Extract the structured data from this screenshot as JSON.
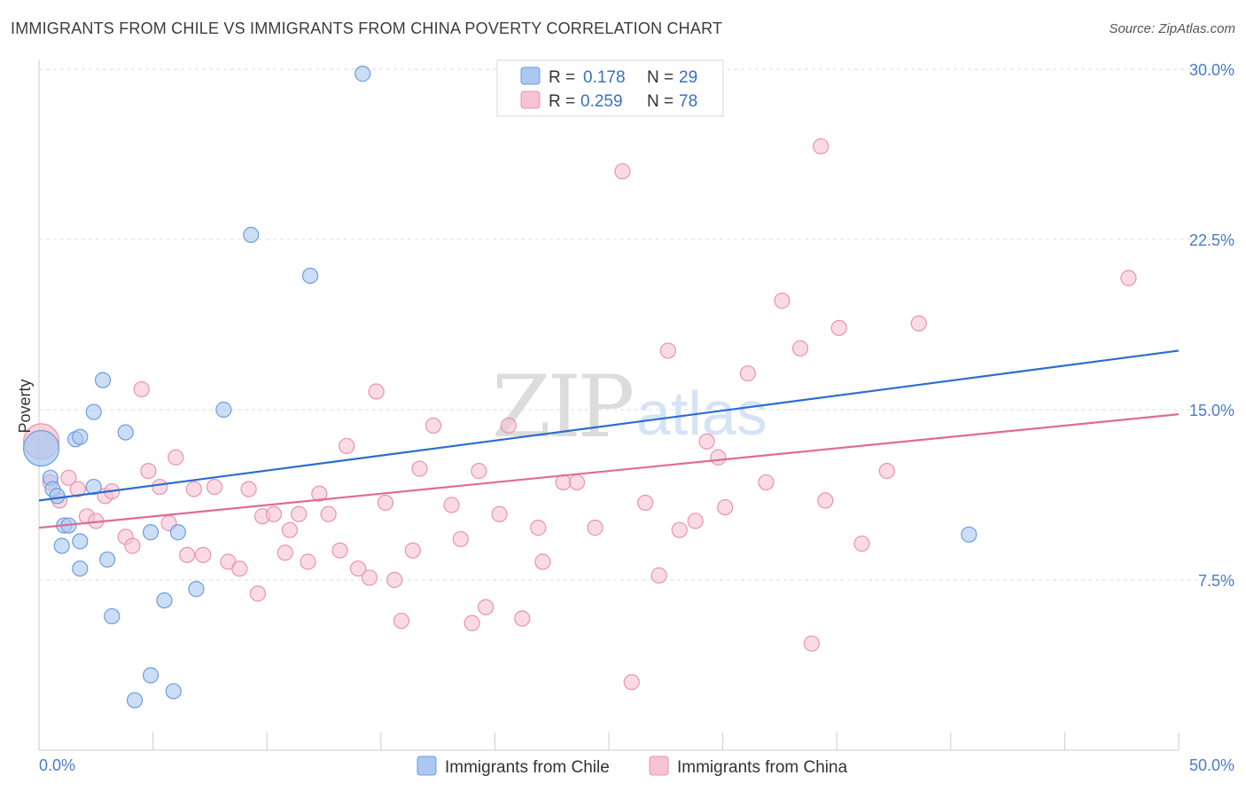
{
  "header": {
    "title": "IMMIGRANTS FROM CHILE VS IMMIGRANTS FROM CHINA POVERTY CORRELATION CHART",
    "source": "Source: ZipAtlas.com"
  },
  "watermark": {
    "zip": "ZIP",
    "atlas": "atlas"
  },
  "colors": {
    "chile_fill": "#aac8f0",
    "chile_stroke": "#6b9de0",
    "chile_line": "#2a6dd0",
    "china_fill": "#f7c3d3",
    "china_stroke": "#e993b0",
    "china_line": "#e06b95",
    "grid": "#dddddd",
    "tick_text": "#4a7bc8"
  },
  "legend_top": {
    "rows": [
      {
        "r_label": "R =",
        "r_value": "0.178",
        "n_label": "N =",
        "n_value": "29"
      },
      {
        "r_label": "R =",
        "r_value": "0.259",
        "n_label": "N =",
        "n_value": "78"
      }
    ]
  },
  "chart_data": {
    "type": "scatter",
    "title": "IMMIGRANTS FROM CHILE VS IMMIGRANTS FROM CHINA POVERTY CORRELATION CHART",
    "xlabel": "",
    "ylabel": "Poverty",
    "xlim": [
      0,
      50
    ],
    "ylim": [
      0,
      31
    ],
    "x_tick_labels": [
      "0.0%",
      "50.0%"
    ],
    "y_ticks": [
      7.5,
      15.0,
      22.5,
      30.0
    ],
    "y_tick_labels": [
      "7.5%",
      "15.0%",
      "22.5%",
      "30.0%"
    ],
    "grid": true,
    "legend_position": "top-center",
    "series": [
      {
        "name": "Immigrants from Chile",
        "r": 0.178,
        "n": 29,
        "trend": {
          "x": [
            0,
            50
          ],
          "y": [
            11.0,
            17.6
          ]
        },
        "points": [
          [
            0.1,
            13.3,
            "large"
          ],
          [
            0.5,
            12.0
          ],
          [
            0.6,
            11.5
          ],
          [
            0.8,
            11.2
          ],
          [
            1.1,
            9.9
          ],
          [
            1.3,
            9.9
          ],
          [
            1.6,
            13.7
          ],
          [
            1.0,
            9.0
          ],
          [
            1.8,
            9.2
          ],
          [
            1.8,
            13.8
          ],
          [
            2.4,
            14.9
          ],
          [
            2.4,
            11.6
          ],
          [
            2.8,
            16.3
          ],
          [
            3.0,
            8.4
          ],
          [
            3.2,
            5.9
          ],
          [
            3.8,
            14.0
          ],
          [
            4.2,
            2.2
          ],
          [
            4.9,
            3.3
          ],
          [
            4.9,
            9.6
          ],
          [
            5.5,
            6.6
          ],
          [
            5.9,
            2.6
          ],
          [
            6.1,
            9.6
          ],
          [
            6.9,
            7.1
          ],
          [
            8.1,
            15.0
          ],
          [
            9.3,
            22.7
          ],
          [
            11.9,
            20.9
          ],
          [
            14.2,
            29.8
          ],
          [
            1.8,
            8.0
          ],
          [
            40.8,
            9.5
          ]
        ]
      },
      {
        "name": "Immigrants from China",
        "r": 0.259,
        "n": 78,
        "trend": {
          "x": [
            0,
            50
          ],
          "y": [
            9.8,
            14.8
          ]
        },
        "points": [
          [
            0.1,
            13.6,
            "large"
          ],
          [
            0.5,
            11.8
          ],
          [
            0.9,
            11.0
          ],
          [
            1.3,
            12.0
          ],
          [
            1.7,
            11.5
          ],
          [
            2.1,
            10.3
          ],
          [
            2.5,
            10.1
          ],
          [
            2.9,
            11.2
          ],
          [
            3.2,
            11.4
          ],
          [
            3.8,
            9.4
          ],
          [
            4.1,
            9.0
          ],
          [
            4.5,
            15.9
          ],
          [
            4.8,
            12.3
          ],
          [
            5.3,
            11.6
          ],
          [
            5.7,
            10.0
          ],
          [
            6.0,
            12.9
          ],
          [
            6.5,
            8.6
          ],
          [
            6.8,
            11.5
          ],
          [
            7.2,
            8.6
          ],
          [
            7.7,
            11.6
          ],
          [
            8.3,
            8.3
          ],
          [
            8.8,
            8.0
          ],
          [
            9.2,
            11.5
          ],
          [
            9.6,
            6.9
          ],
          [
            9.8,
            10.3
          ],
          [
            10.3,
            10.4
          ],
          [
            10.8,
            8.7
          ],
          [
            11.0,
            9.7
          ],
          [
            11.4,
            10.4
          ],
          [
            11.8,
            8.3
          ],
          [
            12.3,
            11.3
          ],
          [
            12.7,
            10.4
          ],
          [
            13.2,
            8.8
          ],
          [
            13.5,
            13.4
          ],
          [
            14.0,
            8.0
          ],
          [
            14.5,
            7.6
          ],
          [
            14.8,
            15.8
          ],
          [
            15.2,
            10.9
          ],
          [
            15.6,
            7.5
          ],
          [
            15.9,
            5.7
          ],
          [
            16.4,
            8.8
          ],
          [
            16.7,
            12.4
          ],
          [
            17.3,
            14.3
          ],
          [
            18.1,
            10.8
          ],
          [
            18.5,
            9.3
          ],
          [
            19.0,
            5.6
          ],
          [
            19.3,
            12.3
          ],
          [
            19.6,
            6.3
          ],
          [
            20.2,
            10.4
          ],
          [
            20.6,
            14.3
          ],
          [
            21.2,
            5.8
          ],
          [
            21.9,
            9.8
          ],
          [
            22.1,
            8.3
          ],
          [
            23.0,
            11.8
          ],
          [
            23.6,
            11.8
          ],
          [
            24.4,
            9.8
          ],
          [
            25.6,
            25.5
          ],
          [
            26.0,
            3.0
          ],
          [
            26.6,
            10.9
          ],
          [
            27.2,
            7.7
          ],
          [
            27.6,
            17.6
          ],
          [
            28.1,
            9.7
          ],
          [
            28.8,
            10.1
          ],
          [
            29.3,
            13.6
          ],
          [
            29.8,
            12.9
          ],
          [
            30.1,
            10.7
          ],
          [
            31.1,
            16.6
          ],
          [
            31.9,
            11.8
          ],
          [
            32.6,
            19.8
          ],
          [
            33.4,
            17.7
          ],
          [
            33.9,
            4.7
          ],
          [
            34.3,
            26.6
          ],
          [
            34.5,
            11.0
          ],
          [
            35.1,
            18.6
          ],
          [
            36.1,
            9.1
          ],
          [
            37.2,
            12.3
          ],
          [
            38.6,
            18.8
          ],
          [
            47.8,
            20.8
          ]
        ]
      }
    ]
  },
  "legend_bottom": {
    "items": [
      {
        "label": "Immigrants from Chile"
      },
      {
        "label": "Immigrants from China"
      }
    ]
  }
}
